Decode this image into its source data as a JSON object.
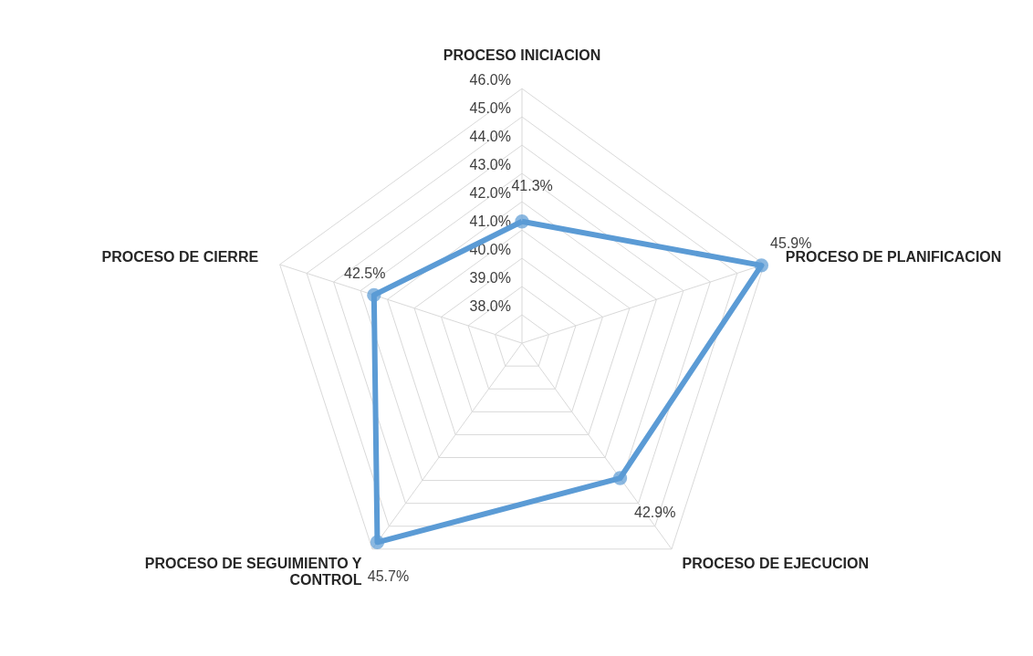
{
  "chart_data": {
    "type": "radar",
    "categories": [
      "PROCESO INICIACION",
      "PROCESO DE PLANIFICACION",
      "PROCESO DE EJECUCION",
      "PROCESO DE SEGUIMIENTO Y CONTROL",
      "PROCESO DE CIERRE"
    ],
    "series": [
      {
        "color": "#5b9bd5",
        "values": [
          41.3,
          45.9,
          42.9,
          45.7,
          42.5
        ],
        "value_labels": [
          "41.3%",
          "45.9%",
          "42.9%",
          "45.7%",
          "42.5%"
        ]
      }
    ],
    "ylim": [
      37,
      46
    ],
    "yticks": [
      {
        "value": 38,
        "label": "38.0%"
      },
      {
        "value": 39,
        "label": "39.0%"
      },
      {
        "value": 40,
        "label": "40.0%"
      },
      {
        "value": 41,
        "label": "41.0%"
      },
      {
        "value": 42,
        "label": "42.0%"
      },
      {
        "value": 43,
        "label": "43.0%"
      },
      {
        "value": 44,
        "label": "44.0%"
      },
      {
        "value": 45,
        "label": "45.0%"
      },
      {
        "value": 46,
        "label": "46.0%"
      }
    ],
    "grid": true,
    "marker": "circle",
    "line_style": "solid"
  }
}
